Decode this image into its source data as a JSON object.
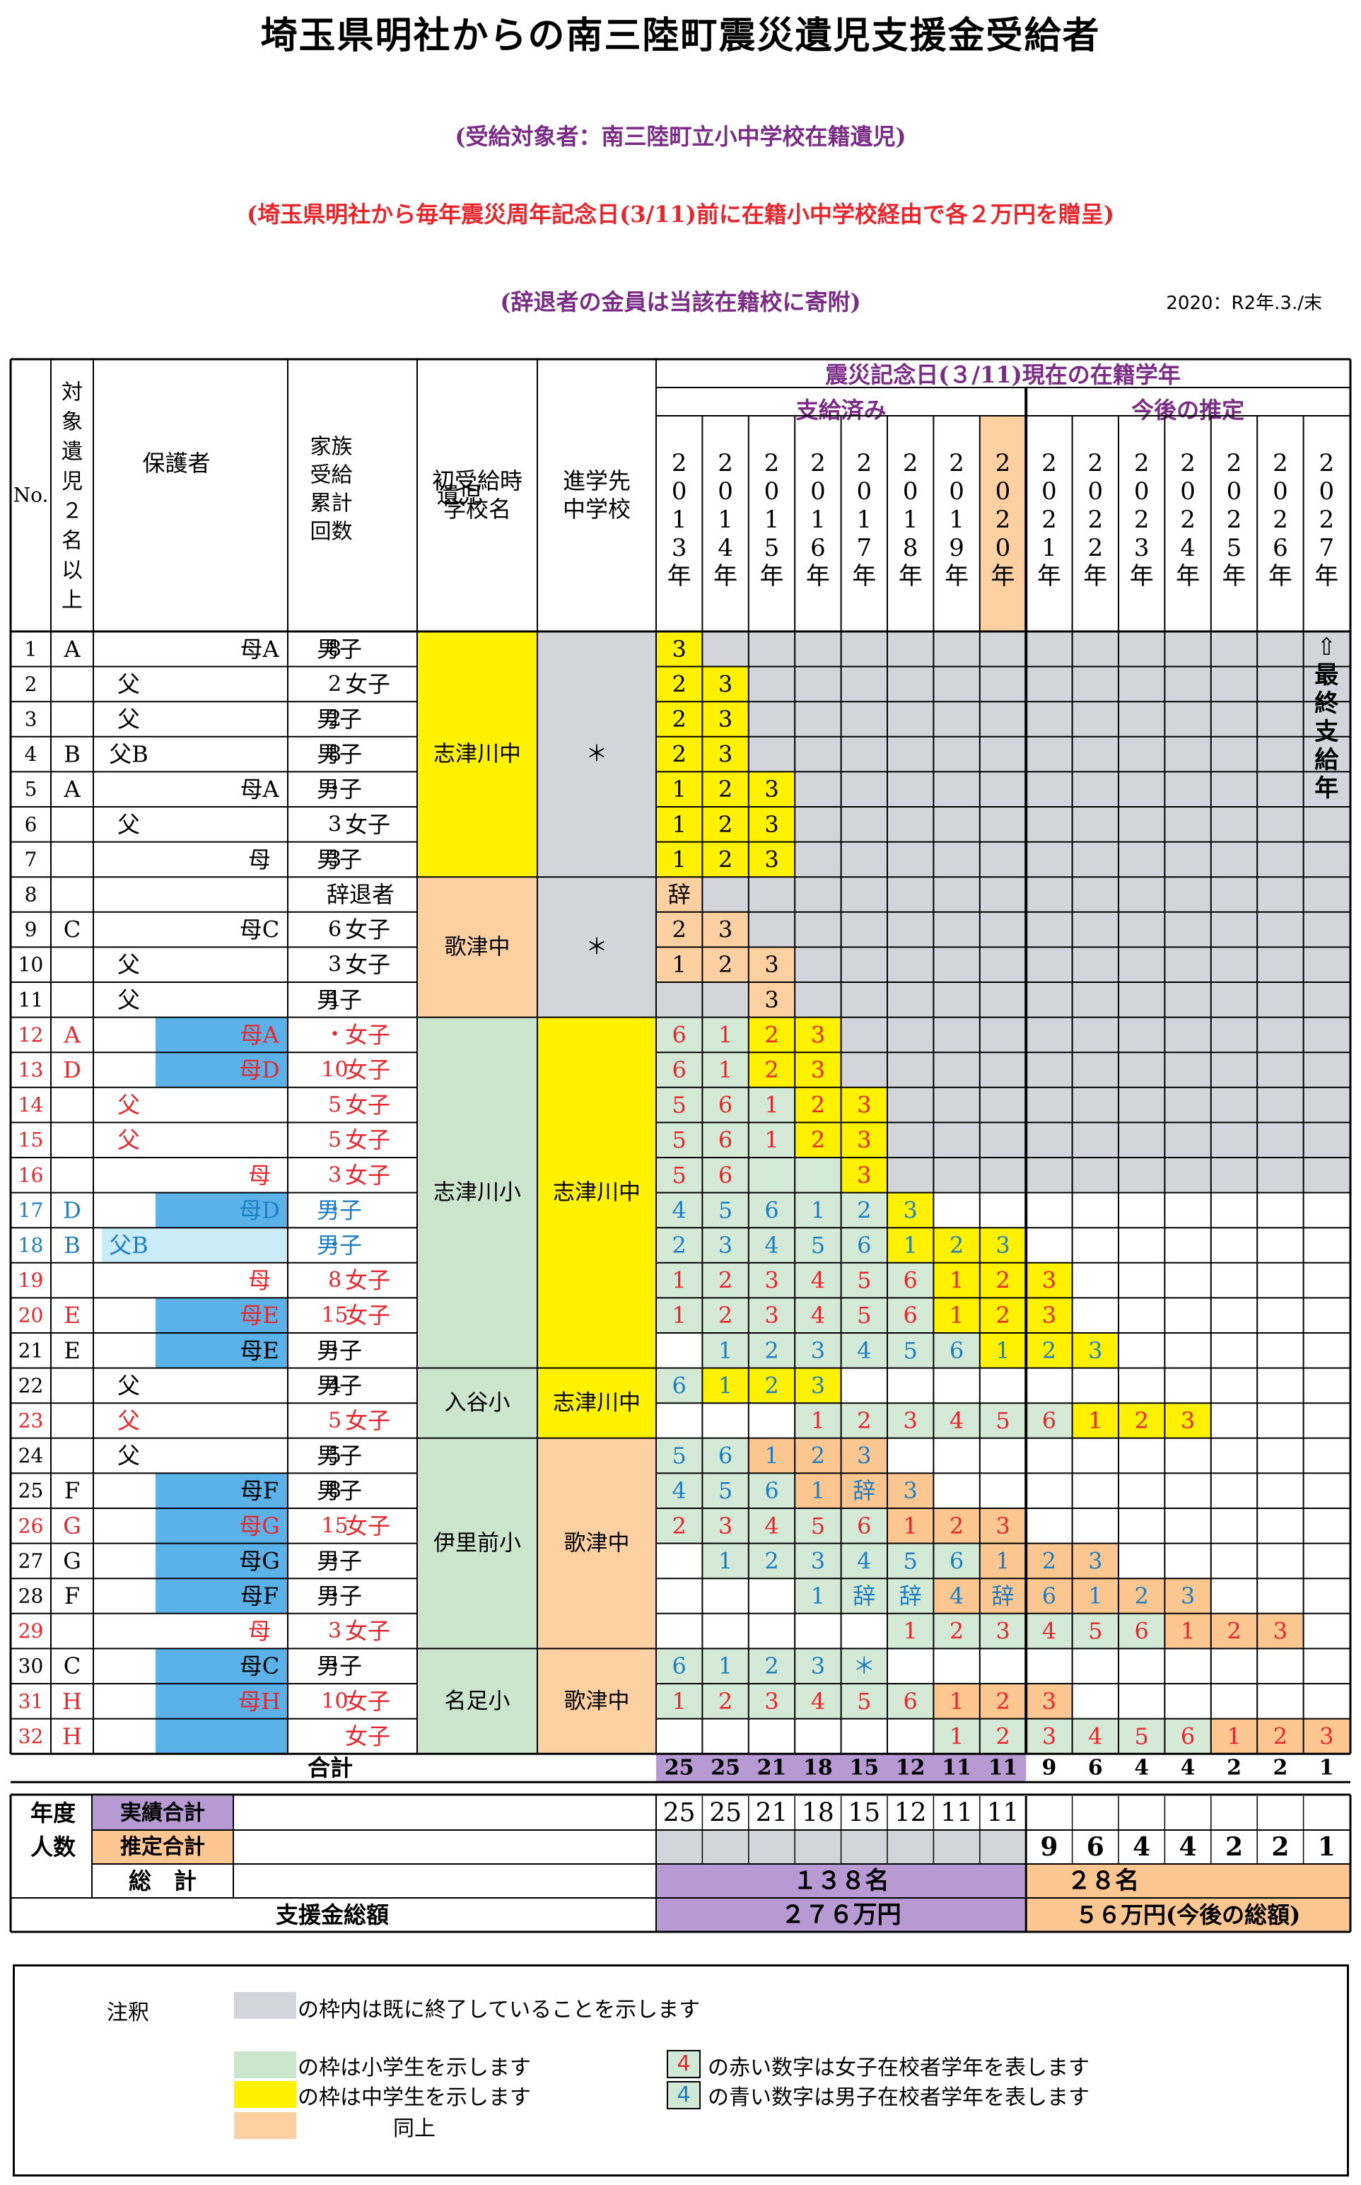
{
  "title": "埼玉県明社からの南三陸町震災遺児支援金受給者",
  "subtitle1": "(受給対象者：南三陸町立小中学校在籍遺児)",
  "subtitle2": "(埼玉県明社から毎年震災周年記念日(3/11)前に在籍小中学校経由で各２万円を贈呈)",
  "subtitle3": "(辞退者の金員は当該在籍校に寄附)",
  "date_note": "2020：R2年.3./末",
  "colors": {
    "gray": "#d4d5dc",
    "yellow": "#fff100",
    "peach": "#fcd0a1",
    "green": "#cbe6cd",
    "lightgreen": "#d5ead6",
    "blue": "#5ab2e8",
    "lightblue": "#c9ecf8",
    "purple": "#b79ad3",
    "orange": "#fcc690",
    "red": "#e8262b",
    "textblue": "#1c7fc4"
  },
  "headers": {
    "no": "No.",
    "multi": [
      "対",
      "象",
      "遺",
      "児",
      "２",
      "名",
      "以",
      "上"
    ],
    "guardian": "保護者",
    "family": [
      "家族",
      "受給",
      "累計",
      "回数"
    ],
    "child": "遺児",
    "first_school": [
      "初受給時",
      "学校名"
    ],
    "next_school": [
      "進学先",
      "中学校"
    ],
    "grade_title": "震災記念日(３/11)現在の在籍学年",
    "paid": "支給済み",
    "future": "今後の推定",
    "years": [
      "2013年",
      "2014年",
      "2015年",
      "2016年",
      "2017年",
      "2018年",
      "2019年",
      "2020年",
      "2021年",
      "2022年",
      "2023年",
      "2024年",
      "2025年",
      "2026年",
      "2027年"
    ],
    "final_year": "⇧最終支給年"
  },
  "groups": [
    {
      "rows": [
        1,
        7
      ],
      "first_school": "志津川中",
      "next_school": "＊"
    },
    {
      "rows": [
        8,
        11
      ],
      "first_school": "歌津中",
      "next_school": "＊"
    },
    {
      "rows": [
        12,
        21
      ],
      "first_school": "志津川小",
      "next_school": "志津川中"
    },
    {
      "rows": [
        22,
        23
      ],
      "first_school": "入谷小",
      "next_school": "志津川中"
    },
    {
      "rows": [
        24,
        29
      ],
      "first_school": "伊里前小",
      "next_school": "歌津中"
    },
    {
      "rows": [
        30,
        32
      ],
      "first_school": "名足小",
      "next_school": "歌津中"
    }
  ],
  "rows": [
    {
      "no": "1",
      "multi": "A",
      "guardian": "母A",
      "count": "8",
      "child": "男子",
      "cells": [
        "3",
        "",
        "",
        "",
        "",
        "",
        "",
        "",
        "",
        "",
        "",
        "",
        "",
        "",
        ""
      ]
    },
    {
      "no": "2",
      "multi": "",
      "guardian": "父",
      "count": "2",
      "child": "女子",
      "cells": [
        "2",
        "3",
        "",
        "",
        "",
        "",
        "",
        "",
        "",
        "",
        "",
        "",
        "",
        "",
        ""
      ]
    },
    {
      "no": "3",
      "multi": "",
      "guardian": "父",
      "count": "2",
      "child": "男子",
      "cells": [
        "2",
        "3",
        "",
        "",
        "",
        "",
        "",
        "",
        "",
        "",
        "",
        "",
        "",
        "",
        ""
      ]
    },
    {
      "no": "4",
      "multi": "B",
      "guardian": "父B",
      "count": "8",
      "child": "男子",
      "cells": [
        "2",
        "3",
        "",
        "",
        "",
        "",
        "",
        "",
        "",
        "",
        "",
        "",
        "",
        "",
        ""
      ]
    },
    {
      "no": "5",
      "multi": "A",
      "guardian": "母A",
      "count": "・",
      "child": "男子",
      "cells": [
        "1",
        "2",
        "3",
        "",
        "",
        "",
        "",
        "",
        "",
        "",
        "",
        "",
        "",
        "",
        ""
      ]
    },
    {
      "no": "6",
      "multi": "",
      "guardian": "父",
      "count": "3",
      "child": "女子",
      "cells": [
        "1",
        "2",
        "3",
        "",
        "",
        "",
        "",
        "",
        "",
        "",
        "",
        "",
        "",
        "",
        ""
      ]
    },
    {
      "no": "7",
      "multi": "",
      "guardian": "母",
      "count": "3",
      "child": "男子",
      "cells": [
        "1",
        "2",
        "3",
        "",
        "",
        "",
        "",
        "",
        "",
        "",
        "",
        "",
        "",
        "",
        ""
      ]
    },
    {
      "no": "8",
      "multi": "",
      "guardian": "",
      "count": "",
      "child": "辞退者",
      "cells": [
        "辞",
        "",
        "",
        "",
        "",
        "",
        "",
        "",
        "",
        "",
        "",
        "",
        "",
        "",
        ""
      ]
    },
    {
      "no": "9",
      "multi": "C",
      "guardian": "母C",
      "count": "6",
      "child": "女子",
      "cells": [
        "2",
        "3",
        "",
        "",
        "",
        "",
        "",
        "",
        "",
        "",
        "",
        "",
        "",
        "",
        ""
      ]
    },
    {
      "no": "10",
      "multi": "",
      "guardian": "父",
      "count": "3",
      "child": "女子",
      "cells": [
        "1",
        "2",
        "3",
        "",
        "",
        "",
        "",
        "",
        "",
        "",
        "",
        "",
        "",
        "",
        ""
      ]
    },
    {
      "no": "11",
      "multi": "",
      "guardian": "父",
      "count": "1",
      "child": "男子",
      "cells": [
        "",
        "",
        "3",
        "",
        "",
        "",
        "",
        "",
        "",
        "",
        "",
        "",
        "",
        "",
        ""
      ]
    },
    {
      "no": "12",
      "multi": "A",
      "guardian": "母A",
      "count": "・",
      "child": "女子",
      "cells": [
        "6",
        "1",
        "2",
        "3",
        "",
        "",
        "",
        "",
        "",
        "",
        "",
        "",
        "",
        "",
        ""
      ]
    },
    {
      "no": "13",
      "multi": "D",
      "guardian": "母D",
      "count": "10",
      "child": "女子",
      "cells": [
        "6",
        "1",
        "2",
        "3",
        "",
        "",
        "",
        "",
        "",
        "",
        "",
        "",
        "",
        "",
        ""
      ]
    },
    {
      "no": "14",
      "multi": "",
      "guardian": "父",
      "count": "5",
      "child": "女子",
      "cells": [
        "5",
        "6",
        "1",
        "2",
        "3",
        "",
        "",
        "",
        "",
        "",
        "",
        "",
        "",
        "",
        ""
      ]
    },
    {
      "no": "15",
      "multi": "",
      "guardian": "父",
      "count": "5",
      "child": "女子",
      "cells": [
        "5",
        "6",
        "1",
        "2",
        "3",
        "",
        "",
        "",
        "",
        "",
        "",
        "",
        "",
        "",
        ""
      ]
    },
    {
      "no": "16",
      "multi": "",
      "guardian": "母",
      "count": "3",
      "child": "女子",
      "cells": [
        "5",
        "6",
        "",
        "",
        "3",
        "",
        "",
        "",
        "",
        "",
        "",
        "",
        "",
        "",
        ""
      ]
    },
    {
      "no": "17",
      "multi": "D",
      "guardian": "母D",
      "count": "・",
      "child": "男子",
      "cells": [
        "4",
        "5",
        "6",
        "1",
        "2",
        "3",
        "",
        "",
        "",
        "",
        "",
        "",
        "",
        "",
        ""
      ]
    },
    {
      "no": "18",
      "multi": "B",
      "guardian": "父B",
      "count": "・",
      "child": "男子",
      "cells": [
        "2",
        "3",
        "4",
        "5",
        "6",
        "1",
        "2",
        "3",
        "",
        "",
        "",
        "",
        "",
        "",
        ""
      ]
    },
    {
      "no": "19",
      "multi": "",
      "guardian": "母",
      "count": "8",
      "child": "女子",
      "cells": [
        "1",
        "2",
        "3",
        "4",
        "5",
        "6",
        "1",
        "2",
        "3",
        "",
        "",
        "",
        "",
        "",
        ""
      ]
    },
    {
      "no": "20",
      "multi": "E",
      "guardian": "母E",
      "count": "15",
      "child": "女子",
      "cells": [
        "1",
        "2",
        "3",
        "4",
        "5",
        "6",
        "1",
        "2",
        "3",
        "",
        "",
        "",
        "",
        "",
        ""
      ]
    },
    {
      "no": "21",
      "multi": "E",
      "guardian": "母E",
      "count": "・",
      "child": "男子",
      "cells": [
        "",
        "1",
        "2",
        "3",
        "4",
        "5",
        "6",
        "1",
        "2",
        "3",
        "",
        "",
        "",
        "",
        ""
      ]
    },
    {
      "no": "22",
      "multi": "",
      "guardian": "父",
      "count": "4",
      "child": "男子",
      "cells": [
        "6",
        "1",
        "2",
        "3",
        "",
        "",
        "",
        "",
        "",
        "",
        "",
        "",
        "",
        "",
        ""
      ]
    },
    {
      "no": "23",
      "multi": "",
      "guardian": "父",
      "count": "5",
      "child": "女子",
      "cells": [
        "",
        "",
        "",
        "1",
        "2",
        "3",
        "4",
        "5",
        "6",
        "1",
        "2",
        "3",
        "",
        "",
        ""
      ]
    },
    {
      "no": "24",
      "multi": "",
      "guardian": "父",
      "count": "5",
      "child": "男子",
      "cells": [
        "5",
        "6",
        "1",
        "2",
        "3",
        "",
        "",
        "",
        "",
        "",
        "",
        "",
        "",
        "",
        ""
      ]
    },
    {
      "no": "25",
      "multi": "F",
      "guardian": "母F",
      "count": "8",
      "child": "男子",
      "cells": [
        "4",
        "5",
        "6",
        "1",
        "辞",
        "3",
        "",
        "",
        "",
        "",
        "",
        "",
        "",
        "",
        ""
      ]
    },
    {
      "no": "26",
      "multi": "G",
      "guardian": "母G",
      "count": "15",
      "child": "女子",
      "cells": [
        "2",
        "3",
        "4",
        "5",
        "6",
        "1",
        "2",
        "3",
        "",
        "",
        "",
        "",
        "",
        "",
        ""
      ]
    },
    {
      "no": "27",
      "multi": "G",
      "guardian": "母G",
      "count": "・",
      "child": "男子",
      "cells": [
        "",
        "1",
        "2",
        "3",
        "4",
        "5",
        "6",
        "1",
        "2",
        "3",
        "",
        "",
        "",
        "",
        ""
      ]
    },
    {
      "no": "28",
      "multi": "F",
      "guardian": "母F",
      "count": "・",
      "child": "男子",
      "cells": [
        "",
        "",
        "",
        "1",
        "辞",
        "辞",
        "4",
        "辞",
        "6",
        "1",
        "2",
        "3",
        "",
        "",
        ""
      ]
    },
    {
      "no": "29",
      "multi": "",
      "guardian": "母",
      "count": "3",
      "child": "女子",
      "cells": [
        "",
        "",
        "",
        "",
        "",
        "1",
        "2",
        "3",
        "4",
        "5",
        "6",
        "1",
        "2",
        "3",
        ""
      ]
    },
    {
      "no": "30",
      "multi": "C",
      "guardian": "母C",
      "count": "・",
      "child": "男子",
      "cells": [
        "6",
        "1",
        "2",
        "3",
        "＊",
        "",
        "",
        "",
        "",
        "",
        "",
        "",
        "",
        "",
        ""
      ]
    },
    {
      "no": "31",
      "multi": "H",
      "guardian": "母H",
      "count": "10",
      "child": "女子",
      "cells": [
        "1",
        "2",
        "3",
        "4",
        "5",
        "6",
        "1",
        "2",
        "3",
        "",
        "",
        "",
        "",
        "",
        ""
      ]
    },
    {
      "no": "32",
      "multi": "H",
      "guardian": "",
      "count": "",
      "child": "女子",
      "cells": [
        "",
        "",
        "",
        "",
        "",
        "",
        "1",
        "2",
        "3",
        "4",
        "5",
        "6",
        "1",
        "2",
        "3"
      ]
    }
  ],
  "totals": {
    "label": "合計",
    "values": [
      "25",
      "25",
      "21",
      "18",
      "15",
      "12",
      "11",
      "11",
      "9",
      "6",
      "4",
      "4",
      "2",
      "2",
      "1"
    ],
    "nendo": "年度",
    "ninzu": "人数",
    "actual_label": "実績合計",
    "estimate_label": "推定合計",
    "actual_values": [
      "25",
      "25",
      "21",
      "18",
      "15",
      "12",
      "11",
      "11"
    ],
    "estimate_values": [
      "9",
      "6",
      "4",
      "4",
      "2",
      "2",
      "1"
    ],
    "sum_label": "総　計",
    "sum_paid": "１３８名",
    "sum_future": "２８名",
    "amount_label": "支援金総額",
    "amount_paid": "２７６万円",
    "amount_future": "５６万円(今後の総額)"
  },
  "legend": {
    "title": "注釈",
    "gray": "の枠内は既に終了していることを示します",
    "green": "の枠は小学生を示します",
    "yellow": "の枠は中学生を示します",
    "peach": "同上",
    "red_num": "4",
    "red_text": "の赤い数字は女子在校者学年を表します",
    "blue_num": "4",
    "blue_text": "の青い数字は男子在校者学年を表します"
  }
}
